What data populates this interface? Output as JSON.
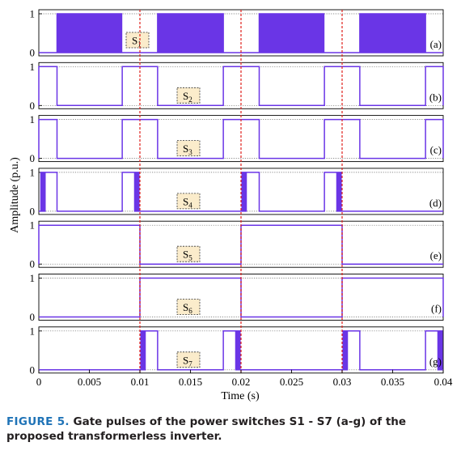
{
  "chart_data": {
    "type": "line",
    "xlabel": "Time (s)",
    "ylabel": "Amplitude (p.u.)",
    "xlim": [
      0,
      0.04
    ],
    "ylim": [
      0,
      1
    ],
    "x_ticks": [
      "0",
      "0.005",
      "0.01",
      "0.015",
      "0.02",
      "0.025",
      "0.03",
      "0.035",
      "0.04"
    ],
    "y_ticks": [
      "0",
      "1"
    ],
    "vlines": [
      0.01,
      0.02,
      0.03
    ],
    "line_color": "#6a35e6",
    "vline_color": "#e0201b",
    "label_box_color": "#fbeccb",
    "panels": [
      {
        "letter": "(a)",
        "label": "S",
        "sub": "1",
        "segments": [
          [
            0.0018,
            0.00825,
            "pwm"
          ],
          [
            0.01175,
            0.01825,
            "pwm"
          ],
          [
            0.0218,
            0.02825,
            "pwm"
          ],
          [
            0.03175,
            0.03825,
            "pwm"
          ]
        ]
      },
      {
        "letter": "(b)",
        "label": "S",
        "sub": "2",
        "segments": [
          [
            0,
            0.0018,
            "high"
          ],
          [
            0.00825,
            0.01175,
            "high"
          ],
          [
            0.01825,
            0.0218,
            "high"
          ],
          [
            0.02825,
            0.03175,
            "high"
          ],
          [
            0.03825,
            0.04,
            "high"
          ]
        ]
      },
      {
        "letter": "(c)",
        "label": "S",
        "sub": "3",
        "segments": [
          [
            0,
            0.0018,
            "high"
          ],
          [
            0.00825,
            0.01175,
            "high"
          ],
          [
            0.01825,
            0.0218,
            "high"
          ],
          [
            0.02825,
            0.03175,
            "high"
          ],
          [
            0.03825,
            0.04,
            "high"
          ]
        ]
      },
      {
        "letter": "(d)",
        "label": "S",
        "sub": "4",
        "segments": [
          [
            0,
            0.0018,
            "edge"
          ],
          [
            0.00825,
            0.01,
            "edge"
          ],
          [
            0.02,
            0.0218,
            "edge"
          ],
          [
            0.02825,
            0.03,
            "edge"
          ]
        ]
      },
      {
        "letter": "(e)",
        "label": "S",
        "sub": "5",
        "segments": [
          [
            0,
            0.01,
            "high"
          ],
          [
            0.02,
            0.03,
            "high"
          ]
        ]
      },
      {
        "letter": "(f)",
        "label": "S",
        "sub": "6",
        "segments": [
          [
            0.01,
            0.02,
            "high"
          ],
          [
            0.03,
            0.04,
            "high"
          ]
        ]
      },
      {
        "letter": "(g)",
        "label": "S",
        "sub": "7",
        "segments": [
          [
            0.01,
            0.01175,
            "edge"
          ],
          [
            0.01825,
            0.02,
            "edge"
          ],
          [
            0.03,
            0.03175,
            "edge"
          ],
          [
            0.03825,
            0.04,
            "edge"
          ]
        ]
      }
    ]
  },
  "caption": {
    "label": "FIGURE 5.",
    "text": "Gate pulses of the power switches S1 - S7 (a-g) of the proposed transformerless inverter."
  }
}
